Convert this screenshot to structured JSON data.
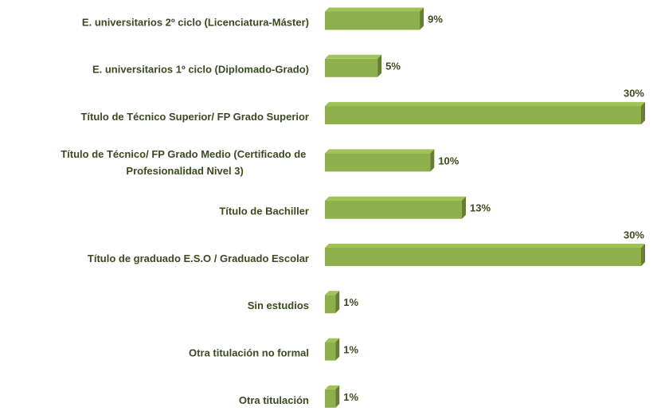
{
  "chart_data": {
    "type": "bar",
    "orientation": "horizontal",
    "categories": [
      "E. universitarios 2º ciclo (Licenciatura-Máster)",
      "E. universitarios 1º ciclo (Diplomado-Grado)",
      "Título de Técnico Superior/ FP Grado Superior",
      "Título de Técnico/ FP Grado Medio (Certificado de Profesionalidad Nivel 3)",
      "Título de Bachiller",
      "Título de graduado E.S.O / Graduado Escolar",
      "Sin estudios",
      "Otra titulación no formal",
      "Otra titulación"
    ],
    "values": [
      9,
      5,
      30,
      10,
      13,
      30,
      1,
      1,
      1
    ],
    "value_labels": [
      "9%",
      "5%",
      "30%",
      "10%",
      "13%",
      "30%",
      "1%",
      "1%",
      "1%"
    ],
    "color": "#8fae4c"
  }
}
